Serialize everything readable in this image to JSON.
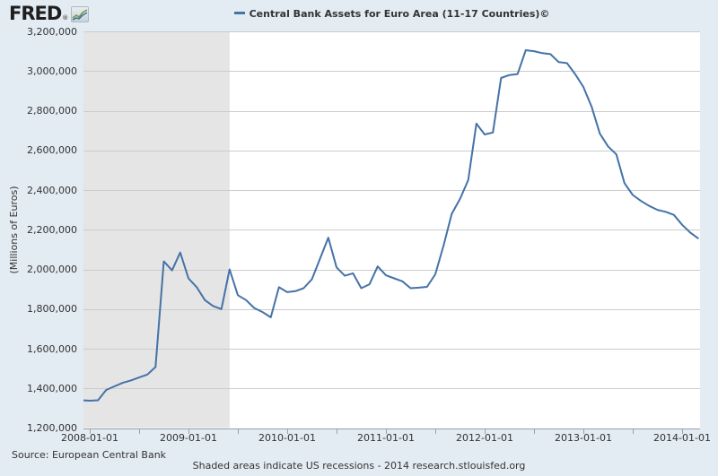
{
  "header": {
    "logo_text": "FRED",
    "logo_registered": "®",
    "logo_icon": "mini-line-chart-icon",
    "legend": {
      "series_label": "Central Bank Assets for Euro Area (11-17 Countries)©"
    }
  },
  "chart_data": {
    "type": "line",
    "title": "Central Bank Assets for Euro Area (11-17 Countries)©",
    "ylabel": "(Millions of Euros)",
    "xlabel": "",
    "ylim": [
      1200000,
      3200000
    ],
    "y_step": 200000,
    "y_tick_labels": [
      "3,200,000",
      "3,000,000",
      "2,800,000",
      "2,600,000",
      "2,400,000",
      "2,200,000",
      "2,000,000",
      "1,800,000",
      "1,600,000",
      "1,400,000",
      "1,200,000"
    ],
    "x_tick_labels": [
      "2008-01-01",
      "2009-01-01",
      "2010-01-01",
      "2011-01-01",
      "2012-01-01",
      "2013-01-01",
      "2014-01-01"
    ],
    "x_minor_tick_interval_months": 6,
    "grid": true,
    "legend_position": "top-center",
    "recession_band": {
      "start": "2007-12",
      "end": "2009-06",
      "meaning": "US recession"
    },
    "series": [
      {
        "name": "Central Bank Assets for Euro Area (11-17 Countries)",
        "color": "#4572a7",
        "points": [
          [
            "2007-12",
            1340000
          ],
          [
            "2008-01",
            1338000
          ],
          [
            "2008-02",
            1340000
          ],
          [
            "2008-03",
            1392000
          ],
          [
            "2008-04",
            1410000
          ],
          [
            "2008-05",
            1428000
          ],
          [
            "2008-06",
            1440000
          ],
          [
            "2008-07",
            1455000
          ],
          [
            "2008-08",
            1470000
          ],
          [
            "2008-09",
            1508000
          ],
          [
            "2008-10",
            2040000
          ],
          [
            "2008-11",
            1995000
          ],
          [
            "2008-12",
            2085000
          ],
          [
            "2009-01",
            1955000
          ],
          [
            "2009-02",
            1910000
          ],
          [
            "2009-03",
            1845000
          ],
          [
            "2009-04",
            1815000
          ],
          [
            "2009-05",
            1800000
          ],
          [
            "2009-06",
            2000000
          ],
          [
            "2009-07",
            1870000
          ],
          [
            "2009-08",
            1845000
          ],
          [
            "2009-09",
            1805000
          ],
          [
            "2009-10",
            1785000
          ],
          [
            "2009-11",
            1758000
          ],
          [
            "2009-12",
            1910000
          ],
          [
            "2010-01",
            1885000
          ],
          [
            "2010-02",
            1890000
          ],
          [
            "2010-03",
            1905000
          ],
          [
            "2010-04",
            1950000
          ],
          [
            "2010-05",
            2055000
          ],
          [
            "2010-06",
            2160000
          ],
          [
            "2010-07",
            2010000
          ],
          [
            "2010-08",
            1968000
          ],
          [
            "2010-09",
            1980000
          ],
          [
            "2010-10",
            1905000
          ],
          [
            "2010-11",
            1925000
          ],
          [
            "2010-12",
            2015000
          ],
          [
            "2011-01",
            1970000
          ],
          [
            "2011-02",
            1955000
          ],
          [
            "2011-03",
            1940000
          ],
          [
            "2011-04",
            1905000
          ],
          [
            "2011-05",
            1908000
          ],
          [
            "2011-06",
            1912000
          ],
          [
            "2011-07",
            1975000
          ],
          [
            "2011-08",
            2120000
          ],
          [
            "2011-09",
            2280000
          ],
          [
            "2011-10",
            2355000
          ],
          [
            "2011-11",
            2450000
          ],
          [
            "2011-12",
            2735000
          ],
          [
            "2012-01",
            2680000
          ],
          [
            "2012-02",
            2690000
          ],
          [
            "2012-03",
            2965000
          ],
          [
            "2012-04",
            2980000
          ],
          [
            "2012-05",
            2985000
          ],
          [
            "2012-06",
            3105000
          ],
          [
            "2012-07",
            3100000
          ],
          [
            "2012-08",
            3090000
          ],
          [
            "2012-09",
            3085000
          ],
          [
            "2012-10",
            3045000
          ],
          [
            "2012-11",
            3040000
          ],
          [
            "2012-12",
            2985000
          ],
          [
            "2013-01",
            2920000
          ],
          [
            "2013-02",
            2820000
          ],
          [
            "2013-03",
            2685000
          ],
          [
            "2013-04",
            2620000
          ],
          [
            "2013-05",
            2580000
          ],
          [
            "2013-06",
            2435000
          ],
          [
            "2013-07",
            2375000
          ],
          [
            "2013-08",
            2345000
          ],
          [
            "2013-09",
            2320000
          ],
          [
            "2013-10",
            2300000
          ],
          [
            "2013-11",
            2290000
          ],
          [
            "2013-12",
            2275000
          ],
          [
            "2014-01",
            2225000
          ],
          [
            "2014-02",
            2185000
          ],
          [
            "2014-03",
            2155000
          ]
        ]
      }
    ]
  },
  "footer": {
    "source": "Source: European Central Bank",
    "note": "Shaded areas indicate US recessions - 2014 research.stlouisfed.org"
  },
  "colors": {
    "page_background": "#e3ebf3",
    "plot_background": "#ffffff",
    "recession_band": "#e5e5e5",
    "gridline": "#cccccc",
    "axis_line": "#98a2ac",
    "series_line": "#4572a7",
    "text": "#333333"
  }
}
